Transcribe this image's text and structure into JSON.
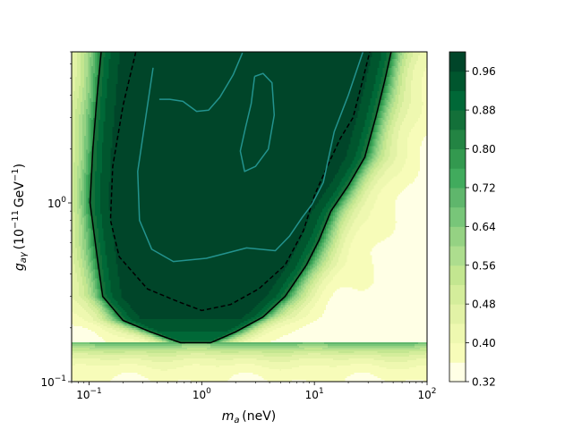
{
  "chart_data": {
    "type": "heatmap",
    "subtype": "filled-contour",
    "title": "",
    "xlabel": "m_a (neV)",
    "ylabel": "g_aγ (10^-11 GeV^-1)",
    "xscale": "log",
    "yscale": "log",
    "xlim": [
      0.07,
      100
    ],
    "ylim": [
      0.1,
      7
    ],
    "x_ticks": [
      {
        "value": 0.1,
        "base": "10",
        "exp": "−1"
      },
      {
        "value": 1,
        "base": "10",
        "exp": "0"
      },
      {
        "value": 10,
        "base": "10",
        "exp": "1"
      },
      {
        "value": 100,
        "base": "10",
        "exp": "2"
      }
    ],
    "y_ticks": [
      {
        "value": 0.1,
        "base": "10",
        "exp": "−1"
      },
      {
        "value": 1,
        "base": "10",
        "exp": "0"
      }
    ],
    "colorbar": {
      "min": 0.32,
      "max": 1.0,
      "ticks": [
        "0.32",
        "0.40",
        "0.48",
        "0.56",
        "0.64",
        "0.72",
        "0.80",
        "0.88",
        "0.96"
      ],
      "levels": [
        0.32,
        0.36,
        0.4,
        0.44,
        0.48,
        0.52,
        0.56,
        0.6,
        0.64,
        0.68,
        0.72,
        0.76,
        0.8,
        0.84,
        0.88,
        0.92,
        0.96,
        1.0
      ],
      "colors": [
        "#ffffe5",
        "#f7fcb9",
        "#eef8b0",
        "#e2f2a6",
        "#d4ed9b",
        "#c3e690",
        "#addd8e",
        "#95d283",
        "#78c679",
        "#5fb66c",
        "#41ab5d",
        "#33994f",
        "#238443",
        "#137039",
        "#006837",
        "#00562e",
        "#004529"
      ]
    },
    "contours": [
      {
        "name": "solid-black",
        "color": "#000000",
        "style": "solid",
        "points": [
          [
            0.128,
            7
          ],
          [
            0.118,
            4
          ],
          [
            0.108,
            2
          ],
          [
            0.102,
            1
          ],
          [
            0.118,
            0.5
          ],
          [
            0.132,
            0.3
          ],
          [
            0.2,
            0.22
          ],
          [
            0.35,
            0.19
          ],
          [
            0.65,
            0.165
          ],
          [
            1.2,
            0.165
          ],
          [
            2.0,
            0.19
          ],
          [
            3.5,
            0.23
          ],
          [
            5.5,
            0.3
          ],
          [
            8.5,
            0.45
          ],
          [
            11,
            0.62
          ],
          [
            14,
            0.9
          ],
          [
            20,
            1.25
          ],
          [
            28,
            1.8
          ],
          [
            35,
            3
          ],
          [
            42,
            4.8
          ],
          [
            48,
            7
          ]
        ]
      },
      {
        "name": "dashed-black",
        "color": "#000000",
        "style": "dashed",
        "points": [
          [
            0.26,
            7
          ],
          [
            0.2,
            3.5
          ],
          [
            0.162,
            1.6
          ],
          [
            0.155,
            0.8
          ],
          [
            0.185,
            0.5
          ],
          [
            0.33,
            0.33
          ],
          [
            0.62,
            0.28
          ],
          [
            1.0,
            0.25
          ],
          [
            1.8,
            0.27
          ],
          [
            3.2,
            0.33
          ],
          [
            5.5,
            0.45
          ],
          [
            8,
            0.7
          ],
          [
            10,
            1.1
          ],
          [
            13,
            1.6
          ],
          [
            17,
            2.3
          ],
          [
            22,
            3
          ],
          [
            26,
            4.5
          ],
          [
            31,
            7
          ]
        ]
      },
      {
        "name": "teal-outer",
        "color": "#23938e",
        "style": "solid",
        "points": [
          [
            0.37,
            5.7
          ],
          [
            0.27,
            1.5
          ],
          [
            0.28,
            0.8
          ],
          [
            0.36,
            0.55
          ],
          [
            0.56,
            0.47
          ],
          [
            1.1,
            0.49
          ],
          [
            2.5,
            0.56
          ],
          [
            4.5,
            0.54
          ],
          [
            6,
            0.65
          ],
          [
            7.8,
            0.83
          ],
          [
            9.5,
            0.98
          ],
          [
            12,
            1.3
          ],
          [
            15,
            2.5
          ],
          [
            20,
            4
          ],
          [
            27,
            7
          ]
        ]
      },
      {
        "name": "teal-top",
        "color": "#23938e",
        "style": "solid",
        "points": [
          [
            0.42,
            3.8
          ],
          [
            0.52,
            3.8
          ],
          [
            0.68,
            3.7
          ],
          [
            0.9,
            3.25
          ],
          [
            1.15,
            3.3
          ],
          [
            1.45,
            3.9
          ],
          [
            1.9,
            5.2
          ],
          [
            2.3,
            6.9
          ]
        ]
      },
      {
        "name": "teal-island",
        "color": "#23938e",
        "style": "solid",
        "points": [
          [
            2.95,
            5.1
          ],
          [
            3.5,
            5.3
          ],
          [
            4.2,
            4.7
          ],
          [
            4.4,
            3.1
          ],
          [
            3.9,
            2.0
          ],
          [
            3.0,
            1.6
          ],
          [
            2.4,
            1.5
          ],
          [
            2.2,
            1.95
          ],
          [
            2.45,
            2.65
          ],
          [
            2.75,
            3.6
          ],
          [
            2.95,
            5.1
          ]
        ]
      }
    ]
  }
}
